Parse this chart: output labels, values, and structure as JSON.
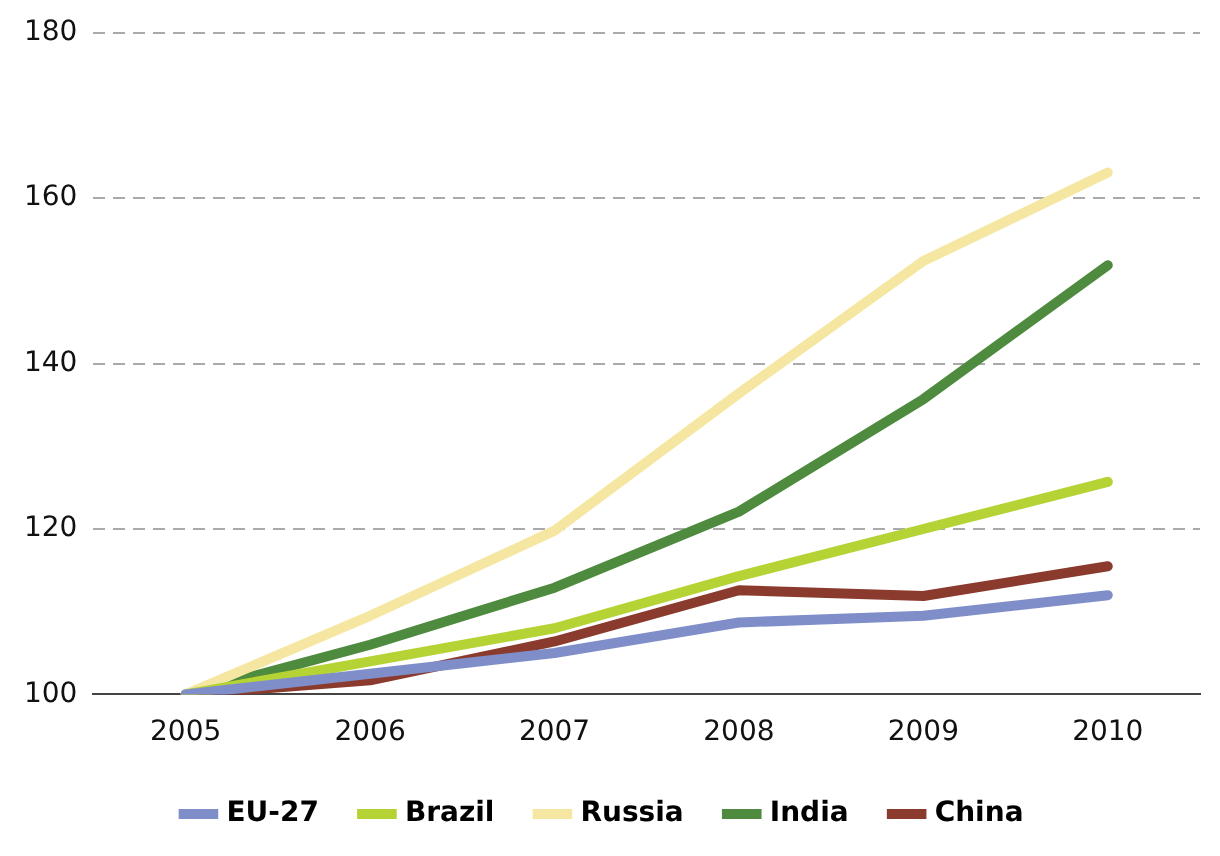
{
  "chart_data": {
    "type": "line",
    "categories": [
      "2005",
      "2006",
      "2007",
      "2008",
      "2009",
      "2010"
    ],
    "series": [
      {
        "name": "EU-27",
        "color": "#7f8ec8",
        "values": [
          100,
          102.5,
          105,
          108.7,
          109.5,
          112
        ]
      },
      {
        "name": "Brazil",
        "color": "#b5d334",
        "values": [
          100,
          104,
          108,
          114.3,
          120,
          125.7
        ]
      },
      {
        "name": "Russia",
        "color": "#f5e7a1",
        "values": [
          100,
          109.5,
          119.8,
          136.4,
          152.4,
          163.1
        ]
      },
      {
        "name": "India",
        "color": "#4e8b3e",
        "values": [
          100,
          106,
          112.9,
          122.1,
          135.7,
          151.9
        ]
      },
      {
        "name": "China",
        "color": "#8b3a2e",
        "values": [
          100,
          101.7,
          106.4,
          112.6,
          111.9,
          115.5
        ]
      }
    ],
    "ylim": [
      100,
      180
    ],
    "yticks": [
      100,
      120,
      140,
      160,
      180
    ],
    "grid": "y",
    "legend": "bottom",
    "marker": "none",
    "line_style": "solid"
  }
}
